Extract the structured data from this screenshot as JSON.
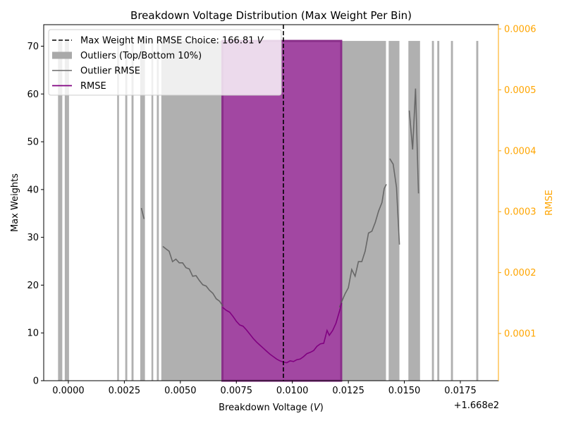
{
  "chart_data": {
    "type": "bar",
    "title": "Breakdown Voltage Distribution (Max Weight Per Bin)",
    "xlabel": "Breakdown Voltage (",
    "xlabel_unit": "V",
    "xlabel_close": ")",
    "ylabel": "Max Weights",
    "y2label": "RMSE",
    "x_offset_text": "+1.668e2",
    "x_offset_value": 166.8,
    "xlim": [
      -0.0011,
      0.0192
    ],
    "ylim": [
      0,
      74.5
    ],
    "y2lim": [
      2.25e-05,
      0.000607
    ],
    "x_ticks": [
      {
        "value": 0.0,
        "label": "0.0000"
      },
      {
        "value": 0.0025,
        "label": "0.0025"
      },
      {
        "value": 0.005,
        "label": "0.0050"
      },
      {
        "value": 0.0075,
        "label": "0.0075"
      },
      {
        "value": 0.01,
        "label": "0.0100"
      },
      {
        "value": 0.0125,
        "label": "0.0125"
      },
      {
        "value": 0.015,
        "label": "0.0150"
      },
      {
        "value": 0.0175,
        "label": "0.0175"
      }
    ],
    "y_ticks": [
      {
        "value": 0,
        "label": "0"
      },
      {
        "value": 10,
        "label": "10"
      },
      {
        "value": 20,
        "label": "20"
      },
      {
        "value": 30,
        "label": "30"
      },
      {
        "value": 40,
        "label": "40"
      },
      {
        "value": 50,
        "label": "50"
      },
      {
        "value": 60,
        "label": "60"
      },
      {
        "value": 70,
        "label": "70"
      }
    ],
    "y2_ticks": [
      {
        "value": 0.0001,
        "label": "0.0001"
      },
      {
        "value": 0.0002,
        "label": "0.0002"
      },
      {
        "value": 0.0003,
        "label": "0.0003"
      },
      {
        "value": 0.0004,
        "label": "0.0004"
      },
      {
        "value": 0.0005,
        "label": "0.0005"
      },
      {
        "value": 0.0006,
        "label": "0.0006"
      }
    ],
    "colors": {
      "outlier_bars": "#b0b0b0",
      "main_bars": "#a247a2",
      "main_bar_edge": "#8a2f8a",
      "rmse": "#800080",
      "outlier_rmse": "#5a5a5a",
      "choice_line": "#000000",
      "right_axis": "#ffa500"
    },
    "bar_max_weight": 71.1,
    "outlier_bars": [
      {
        "x0": -0.00046,
        "x1": -0.00027
      },
      {
        "x0": -0.00016,
        "x1": 3e-05
      },
      {
        "x0": 0.00218,
        "x1": 0.00226
      },
      {
        "x0": 0.00254,
        "x1": 0.00263
      },
      {
        "x0": 0.00282,
        "x1": 0.00291
      },
      {
        "x0": 0.00321,
        "x1": 0.00342
      },
      {
        "x0": 0.00371,
        "x1": 0.00379
      },
      {
        "x0": 0.00395,
        "x1": 0.00404
      },
      {
        "x0": 0.00415,
        "x1": 0.00688
      },
      {
        "x0": 0.01218,
        "x1": 0.01418
      },
      {
        "x0": 0.0143,
        "x1": 0.01478
      },
      {
        "x0": 0.01518,
        "x1": 0.0157
      },
      {
        "x0": 0.01623,
        "x1": 0.01632
      },
      {
        "x0": 0.01647,
        "x1": 0.01656
      },
      {
        "x0": 0.01708,
        "x1": 0.01717
      },
      {
        "x0": 0.01821,
        "x1": 0.0183
      }
    ],
    "main_bar": {
      "x0": 0.00688,
      "x1": 0.01218
    },
    "choice": {
      "x": 0.0096,
      "label_prefix": "Max Weight Min RMSE Choice: 166.81 ",
      "label_unit": "V"
    },
    "series": [
      {
        "name": "Outlier RMSE",
        "axis": "right",
        "segments": [
          [
            [
              0.00326,
              0.000306
            ],
            [
              0.00338,
              0.000288
            ]
          ],
          [
            [
              0.00422,
              0.000243
            ],
            [
              0.00435,
              0.000239
            ],
            [
              0.0045,
              0.000235
            ],
            [
              0.00465,
              0.000218
            ],
            [
              0.0048,
              0.000222
            ],
            [
              0.00495,
              0.000216
            ],
            [
              0.0051,
              0.000216
            ],
            [
              0.00525,
              0.000208
            ],
            [
              0.0054,
              0.000206
            ],
            [
              0.00555,
              0.000194
            ],
            [
              0.0057,
              0.000195
            ],
            [
              0.00585,
              0.000187
            ],
            [
              0.006,
              0.00018
            ],
            [
              0.00615,
              0.000178
            ],
            [
              0.0063,
              0.000171
            ],
            [
              0.00645,
              0.000166
            ],
            [
              0.0066,
              0.000157
            ],
            [
              0.00675,
              0.000153
            ],
            [
              0.0069,
              0.000145
            ]
          ],
          [
            [
              0.0121,
              0.000143
            ],
            [
              0.0122,
              0.000152
            ],
            [
              0.01235,
              0.000165
            ],
            [
              0.0125,
              0.000175
            ],
            [
              0.01265,
              0.000205
            ],
            [
              0.0128,
              0.000194
            ],
            [
              0.01295,
              0.000218
            ],
            [
              0.0131,
              0.000218
            ],
            [
              0.01325,
              0.000235
            ],
            [
              0.0134,
              0.000265
            ],
            [
              0.01355,
              0.000268
            ],
            [
              0.0137,
              0.000282
            ],
            [
              0.01385,
              0.000301
            ],
            [
              0.014,
              0.000315
            ],
            [
              0.0141,
              0.000338
            ],
            [
              0.0142,
              0.000345
            ]
          ],
          [
            [
              0.01435,
              0.000387
            ],
            [
              0.0145,
              0.000378
            ],
            [
              0.01465,
              0.00034
            ],
            [
              0.01478,
              0.000246
            ]
          ],
          [
            [
              0.01522,
              0.000466
            ],
            [
              0.01537,
              0.000402
            ],
            [
              0.0155,
              0.000502
            ],
            [
              0.01563,
              0.00033
            ]
          ]
        ]
      },
      {
        "name": "RMSE",
        "axis": "right",
        "points": [
          [
            0.00688,
            0.000143
          ],
          [
            0.00705,
            0.000138
          ],
          [
            0.0072,
            0.000135
          ],
          [
            0.00735,
            0.000128
          ],
          [
            0.0075,
            0.00012
          ],
          [
            0.00765,
            0.000114
          ],
          [
            0.0078,
            0.000112
          ],
          [
            0.00795,
            0.000106
          ],
          [
            0.0081,
            9.9e-05
          ],
          [
            0.00825,
            9.2e-05
          ],
          [
            0.0084,
            8.6e-05
          ],
          [
            0.00855,
            8.1e-05
          ],
          [
            0.0087,
            7.6e-05
          ],
          [
            0.00885,
            7.1e-05
          ],
          [
            0.009,
            6.6e-05
          ],
          [
            0.00915,
            6.2e-05
          ],
          [
            0.0093,
            5.8e-05
          ],
          [
            0.00945,
            5.5e-05
          ],
          [
            0.0096,
            5.3e-05
          ],
          [
            0.00975,
            5.2e-05
          ],
          [
            0.0099,
            5.5e-05
          ],
          [
            0.01005,
            5.4e-05
          ],
          [
            0.0102,
            5.7e-05
          ],
          [
            0.01035,
            5.8e-05
          ],
          [
            0.0105,
            6.2e-05
          ],
          [
            0.01065,
            6.7e-05
          ],
          [
            0.0108,
            6.9e-05
          ],
          [
            0.01095,
            7.2e-05
          ],
          [
            0.0111,
            7.9e-05
          ],
          [
            0.01125,
            8.3e-05
          ],
          [
            0.0114,
            8.4e-05
          ],
          [
            0.01155,
            0.000105
          ],
          [
            0.01165,
            9.7e-05
          ],
          [
            0.0118,
            0.000105
          ],
          [
            0.01195,
            0.000117
          ],
          [
            0.0121,
            0.000136
          ],
          [
            0.0122,
            0.00015
          ]
        ]
      }
    ],
    "legend": {
      "placement": "upper-left",
      "items": [
        {
          "kind": "dashed",
          "prefix": "Max Weight Min RMSE Choice: 166.81 ",
          "unit": "V",
          "color": "#000000"
        },
        {
          "kind": "patch",
          "text": "Outliers (Top/Bottom 10%)",
          "color": "#a9a9a9"
        },
        {
          "kind": "line",
          "text": "Outlier RMSE",
          "color": "#7f7f7f"
        },
        {
          "kind": "line",
          "text": "RMSE",
          "color": "#800080"
        }
      ]
    }
  }
}
